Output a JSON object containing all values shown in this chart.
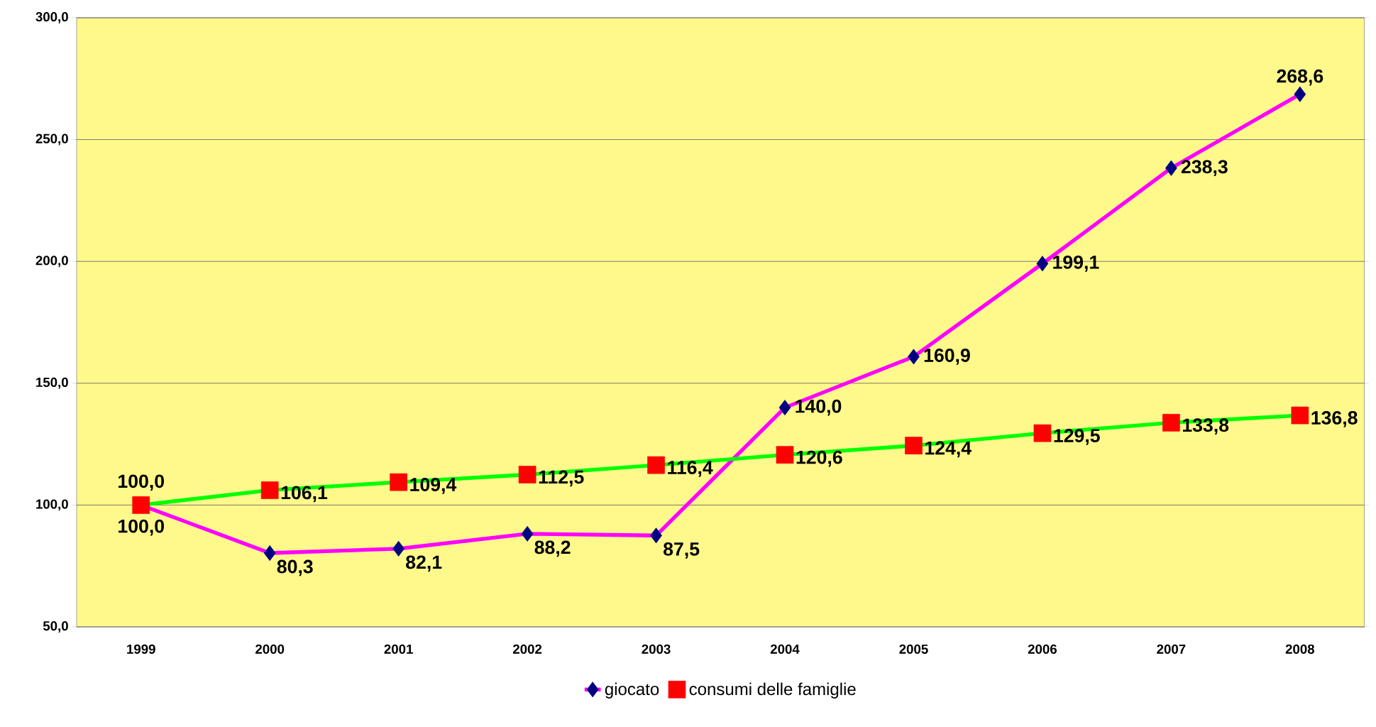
{
  "chart_data": {
    "type": "line",
    "categories": [
      "1999",
      "2000",
      "2001",
      "2002",
      "2003",
      "2004",
      "2005",
      "2006",
      "2007",
      "2008"
    ],
    "series": [
      {
        "name": "giocato",
        "color": "#ff00ff",
        "colors": [
          "#000080",
          "#000080",
          "#000080",
          "#000080",
          "#000080",
          "#000080",
          "#000080",
          "#000080",
          "#000080",
          "#000080"
        ],
        "marker": "diamond",
        "values": [
          100.0,
          80.3,
          82.1,
          88.2,
          87.5,
          140.0,
          160.9,
          199.1,
          238.3,
          268.6
        ],
        "value_labels": [
          "100,0",
          "80,3",
          "82,1",
          "88,2",
          "87,5",
          "140,0",
          "160,9",
          "199,1",
          "238,3",
          "268,6"
        ]
      },
      {
        "name": "consumi delle famiglie",
        "color": "#00ff00",
        "colors": [
          "#ff0000",
          "#ff0000",
          "#ff0000",
          "#ff0000",
          "#ff0000",
          "#ff0000",
          "#ff0000",
          "#ff0000",
          "#ff0000",
          "#ff0000"
        ],
        "marker": "square",
        "values": [
          100.0,
          106.1,
          109.4,
          112.5,
          116.4,
          120.6,
          124.4,
          129.5,
          133.8,
          136.8
        ],
        "value_labels": [
          "100,0",
          "106,1",
          "109,4",
          "112,5",
          "116,4",
          "120,6",
          "124,4",
          "129,5",
          "133,8",
          "136,8"
        ]
      }
    ],
    "ylim": [
      50,
      300
    ],
    "yticks": [
      {
        "value": 50,
        "label": "50,0"
      },
      {
        "value": 100,
        "label": "100,0"
      },
      {
        "value": 150,
        "label": "150,0"
      },
      {
        "value": 200,
        "label": "200,0"
      },
      {
        "value": 250,
        "label": "250,0"
      },
      {
        "value": 300,
        "label": "300,0"
      }
    ],
    "grid": "y",
    "legend": "bottom",
    "line_style": "solid"
  }
}
